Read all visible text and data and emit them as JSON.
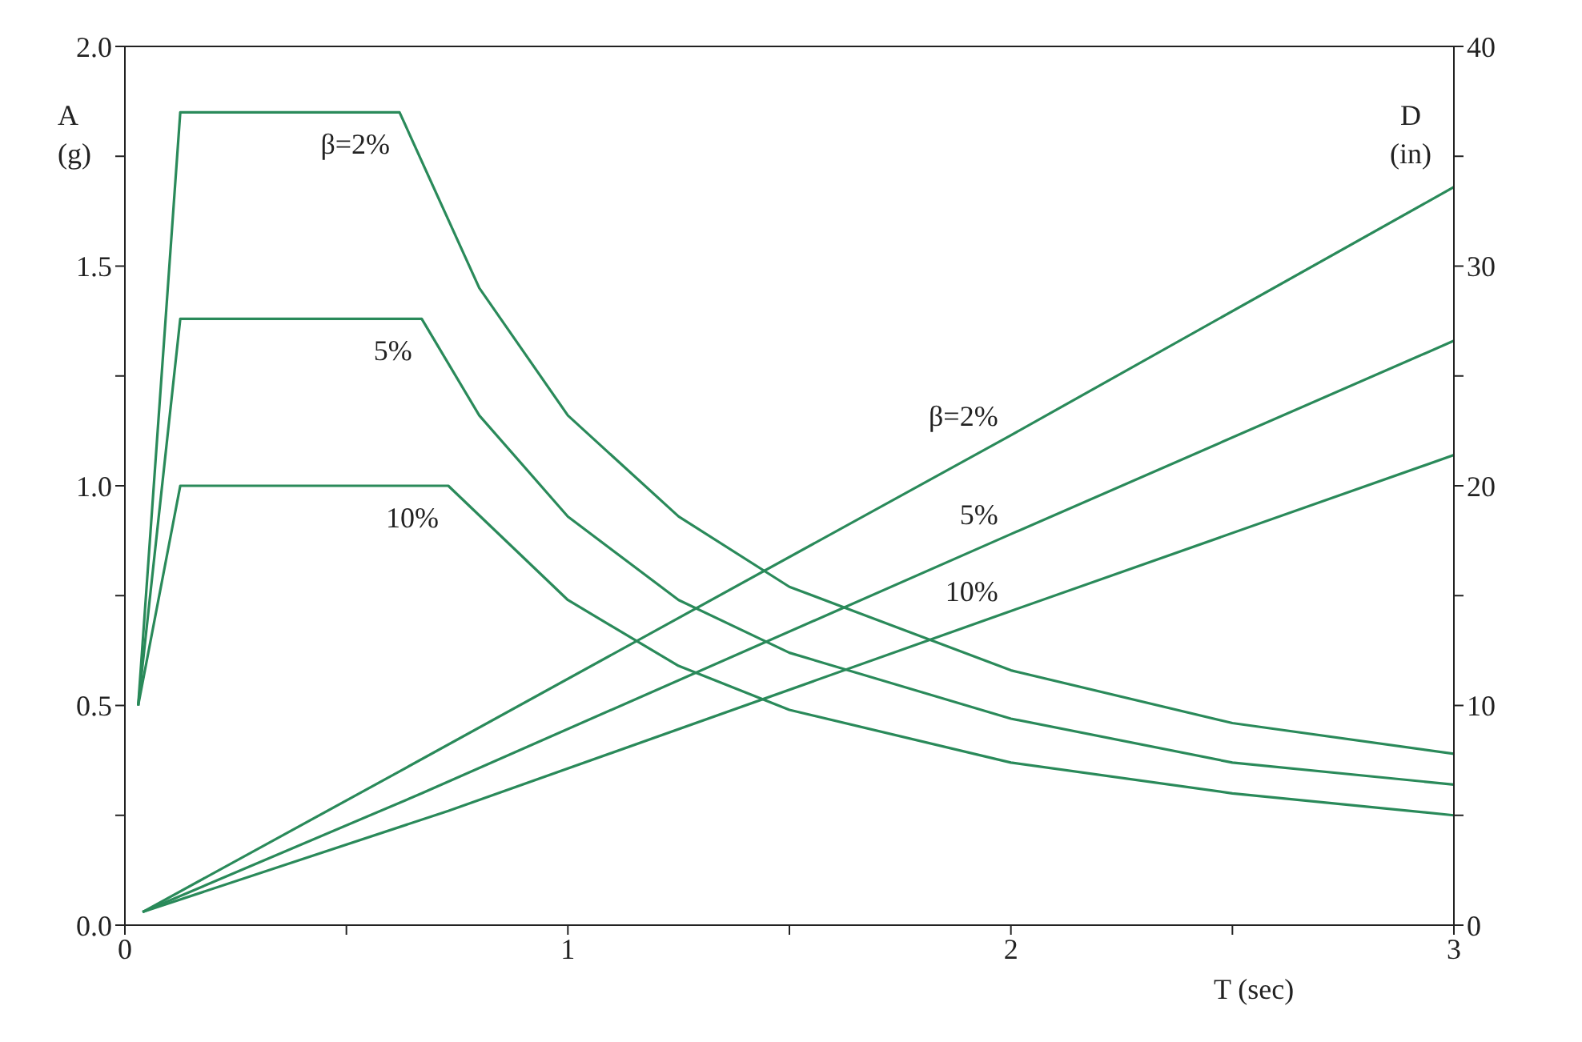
{
  "chart_data": {
    "type": "line",
    "xlabel": "T (sec)",
    "ylabel": "A (g)",
    "y2label": "D (in)",
    "xlim": [
      0,
      3
    ],
    "xticks": [
      0,
      {
        "value": 0.5,
        "label": null
      },
      1,
      {
        "value": 1.5,
        "label": null
      },
      2,
      {
        "value": 2.5,
        "label": null
      },
      3
    ],
    "ylim": [
      0,
      2
    ],
    "yticks": [
      {
        "value": 0,
        "label": "0.0"
      },
      {
        "value": 0.25,
        "label": null
      },
      {
        "value": 0.5,
        "label": "0.5"
      },
      {
        "value": 0.75,
        "label": null
      },
      {
        "value": 1,
        "label": "1.0"
      },
      {
        "value": 1.25,
        "label": null
      },
      {
        "value": 1.5,
        "label": "1.5"
      },
      {
        "value": 1.75,
        "label": null
      },
      {
        "value": 2,
        "label": "2.0"
      }
    ],
    "y2lim": [
      0,
      40
    ],
    "y2ticks": [
      0,
      {
        "value": 5,
        "label": null
      },
      10,
      {
        "value": 15,
        "label": null
      },
      20,
      {
        "value": 25,
        "label": null
      },
      30,
      {
        "value": 35,
        "label": null
      },
      40
    ],
    "grid": false,
    "legend": false,
    "marker": "none",
    "line_style": "solid",
    "series": [
      {
        "name": "β=2%",
        "color": "#2a8a5a",
        "x": [
          0.03,
          0.125,
          0.62,
          0.8,
          1,
          1.25,
          1.5,
          2,
          2.5,
          3
        ],
        "values": [
          0.5,
          1.85,
          1.85,
          1.45,
          1.16,
          0.93,
          0.77,
          0.58,
          0.46,
          0.39
        ]
      },
      {
        "name": "5%",
        "color": "#2a8a5a",
        "x": [
          0.03,
          0.125,
          0.67,
          0.8,
          1,
          1.25,
          1.5,
          2,
          2.5,
          3
        ],
        "values": [
          0.5,
          1.38,
          1.38,
          1.16,
          0.93,
          0.74,
          0.62,
          0.47,
          0.37,
          0.32
        ]
      },
      {
        "name": "10%",
        "color": "#2a8a5a",
        "x": [
          0.03,
          0.125,
          0.73,
          1,
          1.25,
          1.5,
          2,
          2.5,
          3
        ],
        "values": [
          0.5,
          1,
          1,
          0.74,
          0.59,
          0.49,
          0.37,
          0.3,
          0.25
        ]
      },
      {
        "name": "β=2%",
        "color": "#2a8a5a",
        "axis": "y2",
        "x": [
          0.04,
          0.62,
          2,
          3
        ],
        "values": [
          0.6,
          7,
          22.3,
          33.6
        ]
      },
      {
        "name": "5%",
        "color": "#2a8a5a",
        "axis": "y2",
        "x": [
          0.04,
          0.67,
          2,
          3
        ],
        "values": [
          0.6,
          6,
          17.8,
          26.6
        ]
      },
      {
        "name": "10%",
        "color": "#2a8a5a",
        "axis": "y2",
        "x": [
          0.04,
          0.73,
          2,
          3
        ],
        "values": [
          0.6,
          5.2,
          14.3,
          21.4
        ]
      }
    ]
  }
}
